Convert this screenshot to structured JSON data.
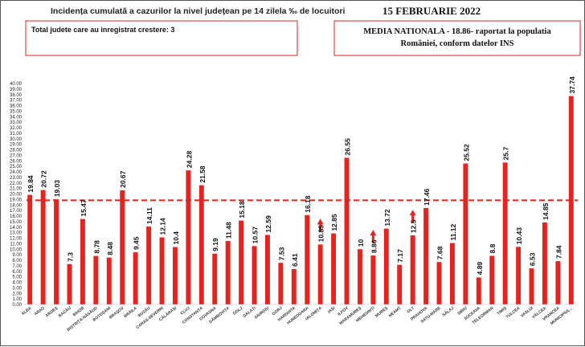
{
  "header": {
    "title": "Incidența cumulată a cazurilor la nivel județean pe 14 zilela ‰ de locuitori",
    "date": "15 FEBRUARIE 2022"
  },
  "info_box": {
    "text": "Total judete care au inregistrat crestere: 3"
  },
  "media_box": {
    "line1": "MEDIA NATIONALA - 18.86- raportat la populatia",
    "line2": "României, conform datelor INS"
  },
  "chart_data": {
    "type": "bar",
    "title": "Incidența cumulată a cazurilor la nivel județean pe 14 zilela ‰ de locuitori",
    "categories": [
      "ALBA",
      "ARAD",
      "ARGEȘ",
      "BACĂU",
      "BIHOR",
      "BISTRIȚA-NĂSĂUD",
      "BOTOȘANI",
      "BRAȘOV",
      "BRĂILA",
      "BUZĂU",
      "CARAȘ-SEVERIN",
      "CĂLĂRAȘI",
      "CLUJ",
      "CONSTANȚA",
      "COVASNA",
      "DÂMBOVIȚA",
      "DOLJ",
      "GALAȚI",
      "GIURGIU",
      "GORJ",
      "HARGHITA",
      "HUNEDOARA",
      "IALOMIȚA",
      "IAȘI",
      "ILFOV",
      "MARAMUREȘ",
      "MEHEDINȚI",
      "MUREȘ",
      "NEAMȚ",
      "OLT",
      "PRAHOVA",
      "SATU-MARE",
      "SĂLAJ",
      "SIBIU",
      "SUCEAVA",
      "TELEORMAN",
      "TIMIȘ",
      "TULCEA",
      "VASLUI",
      "VÂLCEA",
      "VRANCEA",
      "MUNICIPIUL..."
    ],
    "values": [
      19.84,
      20.72,
      19.03,
      7.3,
      15.47,
      8.78,
      8.48,
      20.67,
      9.45,
      14.11,
      12.14,
      10.4,
      24.28,
      21.58,
      9.19,
      11.48,
      15.18,
      10.57,
      12.59,
      7.53,
      6.41,
      16.18,
      10.85,
      12.85,
      26.55,
      10,
      8.86,
      13.72,
      7.17,
      12.5,
      17.46,
      7.68,
      11.12,
      25.52,
      4.89,
      8.8,
      25.7,
      10.43,
      6.53,
      14.85,
      7.84,
      37.74
    ],
    "value_labels": [
      "19.84",
      "20.72",
      "19.03",
      "7.3",
      "15.47",
      "8.78",
      "8.48",
      "20.67",
      "9.45",
      "14.11",
      "12.14",
      "10.4",
      "24.28",
      "21.58",
      "9.19",
      "11.48",
      "15.18",
      "10.57",
      "12.59",
      "7.53",
      "6.41",
      "16.18",
      "10.85",
      "12.85",
      "26.55",
      "10",
      "8.86",
      "13.72",
      "7.17",
      "12.5",
      "17.46",
      "7.68",
      "11.12",
      "25.52",
      "4.89",
      "8.8",
      "25.7",
      "10.43",
      "6.53",
      "14.85",
      "7.84",
      "37.74"
    ],
    "increase_arrows": [
      "IALOMIȚA",
      "MEHEDINȚI",
      "OLT"
    ],
    "reference_line": 18.86,
    "ylim": [
      0,
      40
    ],
    "yticks": [
      "0.00",
      "1.00",
      "2.00",
      "3.00",
      "4.00",
      "5.00",
      "6.00",
      "7.00",
      "8.00",
      "9.00",
      "10.00",
      "11.00",
      "12.00",
      "13.00",
      "14.00",
      "15.00",
      "16.00",
      "17.00",
      "18.00",
      "19.00",
      "20.00",
      "21.00",
      "22.00",
      "23.00",
      "24.00",
      "25.00",
      "26.00",
      "27.00",
      "28.00",
      "29.00",
      "30.00",
      "31.00",
      "32.00",
      "33.00",
      "34.00",
      "35.00",
      "36.00",
      "37.00",
      "38.00",
      "39.00",
      "40.00"
    ],
    "xlabel": "",
    "ylabel": "",
    "grid": false,
    "legend": "none",
    "colors": {
      "bar": "#e8231e",
      "reference_line": "#d9241c",
      "arrow": "#e8231e",
      "box_border": "#d9241c"
    }
  }
}
